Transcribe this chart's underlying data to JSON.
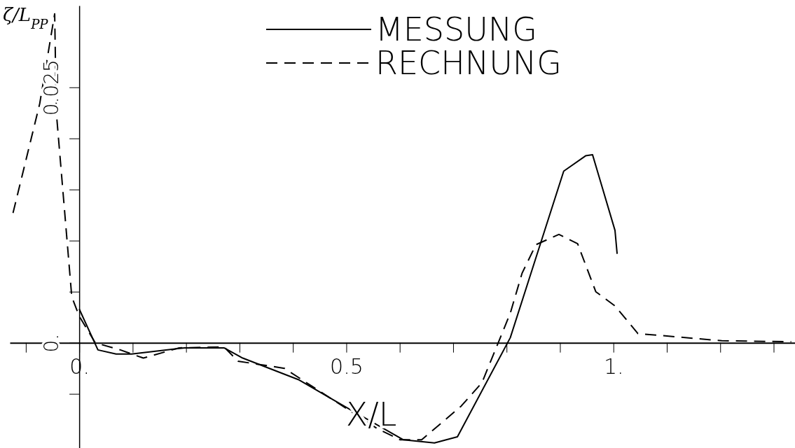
{
  "chart_data": {
    "type": "line",
    "xlabel": "X/L",
    "ylabel": "ζ/L$_{PP}$",
    "xlim": [
      -0.13,
      1.34
    ],
    "ylim": [
      -0.0103,
      0.033
    ],
    "xticks": [
      {
        "value": -0.1,
        "label": null
      },
      {
        "value": 0,
        "label": "0."
      },
      {
        "value": 0.1,
        "label": null
      },
      {
        "value": 0.2,
        "label": null
      },
      {
        "value": 0.3,
        "label": null
      },
      {
        "value": 0.4,
        "label": null
      },
      {
        "value": 0.5,
        "label": "0.5"
      },
      {
        "value": 0.6,
        "label": null
      },
      {
        "value": 0.7,
        "label": null
      },
      {
        "value": 0.8,
        "label": null
      },
      {
        "value": 0.9,
        "label": null
      },
      {
        "value": 1,
        "label": "1."
      },
      {
        "value": 1.1,
        "label": null
      },
      {
        "value": 1.2,
        "label": null
      },
      {
        "value": 1.3,
        "label": null
      }
    ],
    "yticks": [
      {
        "value": -0.005,
        "label": null
      },
      {
        "value": 0,
        "label": "0."
      },
      {
        "value": 0.005,
        "label": null
      },
      {
        "value": 0.01,
        "label": null
      },
      {
        "value": 0.015,
        "label": null
      },
      {
        "value": 0.02,
        "label": null
      },
      {
        "value": 0.025,
        "label": "0.025"
      }
    ],
    "legend": "top",
    "grid": false,
    "marker": "none",
    "series": [
      {
        "name": "MESSUNG",
        "color": "#000000",
        "line_style": "solid",
        "x": [
          0,
          0.035,
          0.069,
          0.098,
          0.197,
          0.271,
          0.306,
          0.41,
          0.489,
          0.607,
          0.665,
          0.708,
          0.807,
          0.907,
          0.948,
          0.961,
          1.003,
          1.007
        ],
        "values": [
          0.0033,
          -0.0007,
          -0.0011,
          -0.0011,
          -0.0005,
          -0.0005,
          -0.0015,
          -0.0036,
          -0.006,
          -0.0095,
          -0.0098,
          -0.0092,
          0.0005,
          0.0168,
          0.0183,
          0.0184,
          0.011,
          0.0087
        ]
      },
      {
        "name": "RECHNUNG",
        "color": "#000000",
        "line_style": "dashed",
        "x": [
          -0.124,
          -0.074,
          -0.046,
          -0.043,
          -0.014,
          0,
          0.03,
          0.077,
          0.12,
          0.187,
          0.271,
          0.297,
          0.384,
          0.558,
          0.601,
          0.641,
          0.715,
          0.754,
          0.807,
          0.829,
          0.855,
          0.898,
          0.933,
          0.967,
          1.003,
          1.046,
          1.203,
          1.333
        ],
        "values": [
          0.0127,
          0.0234,
          0.0322,
          0.0226,
          0.0045,
          0.0026,
          0,
          -0.0007,
          -0.0015,
          -0.0005,
          -0.0004,
          -0.0018,
          -0.0025,
          -0.0084,
          -0.0095,
          -0.0095,
          -0.0062,
          -0.0039,
          0.0029,
          0.0068,
          0.0096,
          0.0106,
          0.0097,
          0.005,
          0.0036,
          0.0009,
          0.0002,
          0.0001
        ]
      }
    ]
  }
}
